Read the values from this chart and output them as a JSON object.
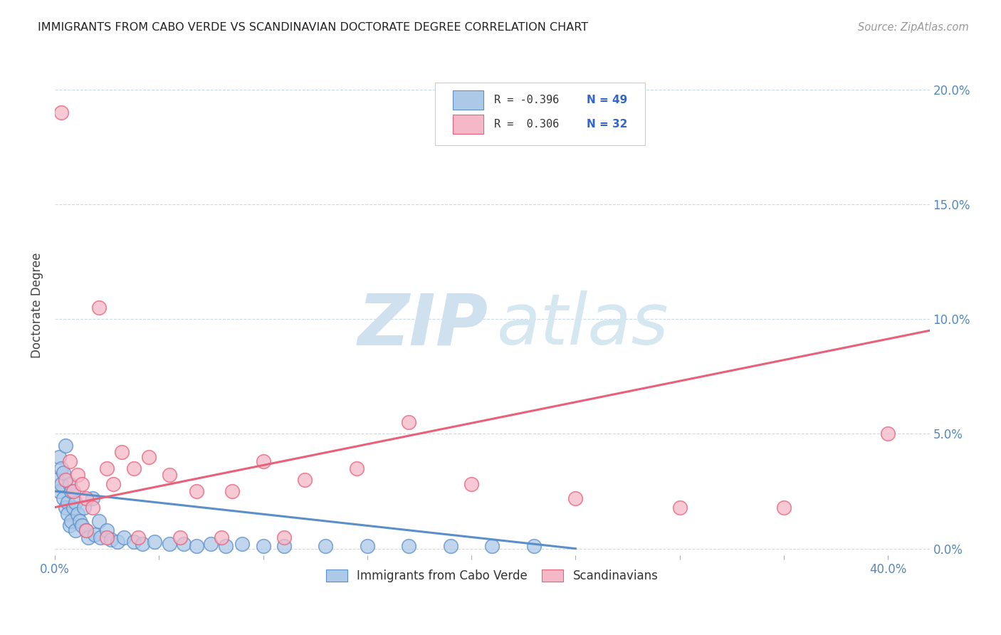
{
  "title": "IMMIGRANTS FROM CABO VERDE VS SCANDINAVIAN DOCTORATE DEGREE CORRELATION CHART",
  "source": "Source: ZipAtlas.com",
  "ylabel": "Doctorate Degree",
  "color_blue": "#adc9e8",
  "color_pink": "#f5b8c8",
  "line_blue": "#5b8fc9",
  "line_pink": "#e8607a",
  "xlim": [
    0.0,
    0.42
  ],
  "ylim": [
    -0.003,
    0.215
  ],
  "ytick_vals": [
    0.0,
    0.05,
    0.1,
    0.15,
    0.2
  ],
  "ytick_labels": [
    "0.0%",
    "5.0%",
    "10.0%",
    "15.0%",
    "20.0%"
  ],
  "cabo_verde_x": [
    0.001,
    0.002,
    0.002,
    0.003,
    0.003,
    0.004,
    0.004,
    0.005,
    0.005,
    0.006,
    0.006,
    0.007,
    0.007,
    0.008,
    0.008,
    0.009,
    0.01,
    0.01,
    0.011,
    0.012,
    0.013,
    0.014,
    0.015,
    0.016,
    0.018,
    0.019,
    0.021,
    0.022,
    0.025,
    0.027,
    0.03,
    0.033,
    0.038,
    0.042,
    0.048,
    0.055,
    0.062,
    0.068,
    0.075,
    0.082,
    0.09,
    0.1,
    0.11,
    0.13,
    0.15,
    0.17,
    0.19,
    0.21,
    0.23
  ],
  "cabo_verde_y": [
    0.03,
    0.025,
    0.04,
    0.035,
    0.028,
    0.022,
    0.033,
    0.018,
    0.045,
    0.02,
    0.015,
    0.028,
    0.01,
    0.025,
    0.012,
    0.018,
    0.02,
    0.008,
    0.015,
    0.012,
    0.01,
    0.018,
    0.008,
    0.005,
    0.022,
    0.006,
    0.012,
    0.005,
    0.008,
    0.004,
    0.003,
    0.005,
    0.003,
    0.002,
    0.003,
    0.002,
    0.002,
    0.001,
    0.002,
    0.001,
    0.002,
    0.001,
    0.001,
    0.001,
    0.001,
    0.001,
    0.001,
    0.001,
    0.001
  ],
  "scandinavian_x": [
    0.003,
    0.005,
    0.007,
    0.009,
    0.011,
    0.013,
    0.015,
    0.018,
    0.021,
    0.025,
    0.028,
    0.032,
    0.038,
    0.045,
    0.055,
    0.068,
    0.085,
    0.1,
    0.12,
    0.145,
    0.17,
    0.2,
    0.25,
    0.3,
    0.35,
    0.4,
    0.015,
    0.025,
    0.04,
    0.06,
    0.08,
    0.11
  ],
  "scandinavian_y": [
    0.19,
    0.03,
    0.038,
    0.025,
    0.032,
    0.028,
    0.022,
    0.018,
    0.105,
    0.035,
    0.028,
    0.042,
    0.035,
    0.04,
    0.032,
    0.025,
    0.025,
    0.038,
    0.03,
    0.035,
    0.055,
    0.028,
    0.022,
    0.018,
    0.018,
    0.05,
    0.008,
    0.005,
    0.005,
    0.005,
    0.005,
    0.005
  ],
  "cabo_line_x": [
    0.0,
    0.25
  ],
  "cabo_line_y": [
    0.025,
    0.0
  ],
  "scand_line_x": [
    0.0,
    0.42
  ],
  "scand_line_y": [
    0.018,
    0.095
  ]
}
